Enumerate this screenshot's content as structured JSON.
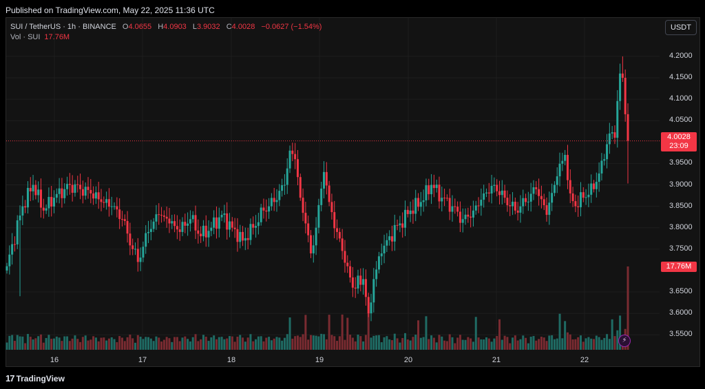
{
  "published": "Published on TradingView.com, May 22, 2025 11:36 UTC",
  "legend": {
    "symbol": "SUI / TetherUS · 1h · BINANCE",
    "open_label": "O",
    "open": "4.0655",
    "high_label": "H",
    "high": "4.0903",
    "low_label": "L",
    "low": "3.9032",
    "close_label": "C",
    "close": "4.0028",
    "change": "−0.0627 (−1.54%)",
    "volume_label": "Vol · SUI",
    "volume_value": "17.76M"
  },
  "currency_button": "USDT",
  "price_tag": {
    "price": "4.0028",
    "countdown": "23:09"
  },
  "volume_tag": "17.76M",
  "footer": {
    "brand": "TradingView",
    "logo_mark": "17"
  },
  "alert_icon": "lightning-icon",
  "colors": {
    "background": "#131313",
    "up": "#26a69a",
    "down": "#f23645",
    "volume_up": "#1f6b64",
    "volume_down": "#7a2b31"
  },
  "chart_data": {
    "type": "candlestick",
    "title": "SUI / TetherUS · 1h · BINANCE",
    "ylim": [
      3.515,
      4.232
    ],
    "yticks": [
      "4.2000",
      "4.1500",
      "4.1000",
      "4.0500",
      "3.9500",
      "3.9000",
      "3.8500",
      "3.8000",
      "3.7500",
      "3.6500",
      "3.6000",
      "3.5500"
    ],
    "xticks": [
      "16",
      "17",
      "18",
      "19",
      "20",
      "21",
      "22"
    ],
    "last_price": 4.0028,
    "grid": true,
    "anchors_close": [
      [
        0,
        3.71
      ],
      [
        6,
        3.85
      ],
      [
        10,
        3.9
      ],
      [
        14,
        3.84
      ],
      [
        18,
        3.87
      ],
      [
        22,
        3.89
      ],
      [
        24,
        3.9
      ],
      [
        28,
        3.89
      ],
      [
        32,
        3.88
      ],
      [
        36,
        3.86
      ],
      [
        40,
        3.85
      ],
      [
        44,
        3.82
      ],
      [
        48,
        3.75
      ],
      [
        50,
        3.72
      ],
      [
        54,
        3.79
      ],
      [
        58,
        3.83
      ],
      [
        62,
        3.81
      ],
      [
        66,
        3.79
      ],
      [
        70,
        3.82
      ],
      [
        74,
        3.78
      ],
      [
        78,
        3.8
      ],
      [
        82,
        3.83
      ],
      [
        86,
        3.8
      ],
      [
        90,
        3.77
      ],
      [
        94,
        3.8
      ],
      [
        98,
        3.84
      ],
      [
        102,
        3.86
      ],
      [
        106,
        3.9
      ],
      [
        108,
        3.98
      ],
      [
        110,
        3.96
      ],
      [
        112,
        3.87
      ],
      [
        114,
        3.81
      ],
      [
        116,
        3.74
      ],
      [
        118,
        3.8
      ],
      [
        121,
        3.93
      ],
      [
        123,
        3.86
      ],
      [
        126,
        3.79
      ],
      [
        130,
        3.71
      ],
      [
        132,
        3.66
      ],
      [
        136,
        3.68
      ],
      [
        138,
        3.6
      ],
      [
        140,
        3.68
      ],
      [
        143,
        3.74
      ],
      [
        146,
        3.78
      ],
      [
        150,
        3.81
      ],
      [
        154,
        3.84
      ],
      [
        158,
        3.86
      ],
      [
        162,
        3.9
      ],
      [
        166,
        3.87
      ],
      [
        170,
        3.85
      ],
      [
        174,
        3.82
      ],
      [
        178,
        3.84
      ],
      [
        182,
        3.88
      ],
      [
        186,
        3.9
      ],
      [
        190,
        3.87
      ],
      [
        194,
        3.84
      ],
      [
        198,
        3.86
      ],
      [
        202,
        3.89
      ],
      [
        206,
        3.83
      ],
      [
        210,
        3.92
      ],
      [
        213,
        3.97
      ],
      [
        215,
        3.88
      ],
      [
        217,
        3.85
      ],
      [
        220,
        3.87
      ],
      [
        224,
        3.89
      ],
      [
        228,
        3.96
      ],
      [
        230,
        4.02
      ],
      [
        232,
        4.01
      ],
      [
        234,
        4.16
      ],
      [
        235,
        4.15
      ],
      [
        236,
        4.065
      ],
      [
        237,
        4.0028
      ]
    ]
  }
}
